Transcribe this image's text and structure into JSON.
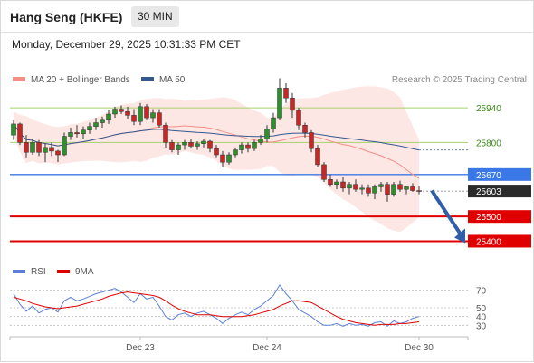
{
  "header": {
    "title": "Hang Seng (HKFE)",
    "interval": "30 MIN",
    "timestamp": "Monday, December 29, 2025 10:31:33 PM CET"
  },
  "legend": {
    "bollinger": {
      "label": "MA 20 + Bollinger Bands",
      "color": "#f28e86"
    },
    "ma50": {
      "label": "MA 50",
      "color": "#33588f"
    },
    "credit": "Research © 2025 Trading Central"
  },
  "rsi_legend": {
    "rsi": {
      "label": "RSI",
      "color": "#5b7fd6"
    },
    "ma9": {
      "label": "9MA",
      "color": "#e00000"
    }
  },
  "chart_data": {
    "type": "candlestick",
    "instrument": "Hang Seng (HKFE)",
    "timeframe": "30 MIN",
    "ylim": [
      25310,
      26080
    ],
    "x_labels": [
      "Dec 23",
      "Dec 24",
      "Dec 30"
    ],
    "x_label_index": [
      20,
      40,
      64
    ],
    "last_price": "25603",
    "levels": [
      {
        "label": "25940",
        "value": 25940,
        "style": "green-line",
        "color": "#a8d06b",
        "text_color": "#3a8a1a"
      },
      {
        "label": "25800",
        "value": 25800,
        "style": "green-line",
        "color": "#a8d06b",
        "text_color": "#3a8a1a"
      },
      {
        "label": "25670",
        "value": 25670,
        "style": "pivot",
        "color": "#3b78e7"
      },
      {
        "label": "25500",
        "value": 25500,
        "style": "support",
        "color": "#e00000"
      },
      {
        "label": "25400",
        "value": 25400,
        "style": "support",
        "color": "#e00000"
      }
    ],
    "projection_arrow": {
      "from_index": 66,
      "from_value": 25605,
      "to_index": 71,
      "to_value": 25400,
      "color": "#2f5fa8"
    },
    "candles": [
      [
        25830,
        25890,
        25810,
        25875
      ],
      [
        25875,
        25880,
        25790,
        25800
      ],
      [
        25800,
        25830,
        25740,
        25760
      ],
      [
        25760,
        25815,
        25750,
        25800
      ],
      [
        25800,
        25810,
        25745,
        25760
      ],
      [
        25760,
        25795,
        25720,
        25780
      ],
      [
        25780,
        25800,
        25745,
        25765
      ],
      [
        25765,
        25770,
        25720,
        25750
      ],
      [
        25750,
        25840,
        25745,
        25825
      ],
      [
        25825,
        25860,
        25810,
        25840
      ],
      [
        25840,
        25870,
        25820,
        25835
      ],
      [
        25835,
        25865,
        25815,
        25850
      ],
      [
        25850,
        25880,
        25835,
        25865
      ],
      [
        25865,
        25900,
        25850,
        25880
      ],
      [
        25880,
        25905,
        25860,
        25890
      ],
      [
        25890,
        25930,
        25875,
        25915
      ],
      [
        25915,
        25945,
        25900,
        25935
      ],
      [
        25935,
        25950,
        25915,
        25925
      ],
      [
        25925,
        25945,
        25895,
        25910
      ],
      [
        25910,
        25935,
        25870,
        25885
      ],
      [
        25885,
        25960,
        25870,
        25945
      ],
      [
        25945,
        25955,
        25890,
        25900
      ],
      [
        25900,
        25935,
        25880,
        25920
      ],
      [
        25920,
        25935,
        25860,
        25870
      ],
      [
        25870,
        25880,
        25780,
        25800
      ],
      [
        25800,
        25810,
        25760,
        25770
      ],
      [
        25770,
        25800,
        25750,
        25790
      ],
      [
        25790,
        25810,
        25770,
        25800
      ],
      [
        25800,
        25815,
        25775,
        25785
      ],
      [
        25785,
        25805,
        25770,
        25795
      ],
      [
        25795,
        25815,
        25780,
        25805
      ],
      [
        25805,
        25810,
        25760,
        25775
      ],
      [
        25775,
        25790,
        25740,
        25750
      ],
      [
        25750,
        25765,
        25700,
        25720
      ],
      [
        25720,
        25760,
        25710,
        25750
      ],
      [
        25750,
        25780,
        25740,
        25770
      ],
      [
        25770,
        25800,
        25755,
        25790
      ],
      [
        25790,
        25800,
        25760,
        25775
      ],
      [
        25775,
        25810,
        25765,
        25800
      ],
      [
        25800,
        25830,
        25790,
        25815
      ],
      [
        25815,
        25870,
        25800,
        25855
      ],
      [
        25855,
        25920,
        25840,
        25900
      ],
      [
        25900,
        26060,
        25890,
        26020
      ],
      [
        26020,
        26040,
        25960,
        25980
      ],
      [
        25980,
        26000,
        25900,
        25930
      ],
      [
        25930,
        25940,
        25850,
        25870
      ],
      [
        25870,
        25880,
        25820,
        25840
      ],
      [
        25840,
        25850,
        25760,
        25775
      ],
      [
        25775,
        25790,
        25700,
        25710
      ],
      [
        25710,
        25720,
        25640,
        25650
      ],
      [
        25650,
        25670,
        25620,
        25630
      ],
      [
        25630,
        25650,
        25610,
        25640
      ],
      [
        25640,
        25660,
        25600,
        25615
      ],
      [
        25615,
        25640,
        25590,
        25630
      ],
      [
        25630,
        25650,
        25600,
        25610
      ],
      [
        25610,
        25630,
        25590,
        25615
      ],
      [
        25615,
        25630,
        25580,
        25595
      ],
      [
        25595,
        25630,
        25570,
        25620
      ],
      [
        25620,
        25640,
        25600,
        25630
      ],
      [
        25630,
        25640,
        25560,
        25590
      ],
      [
        25590,
        25640,
        25580,
        25630
      ],
      [
        25630,
        25645,
        25600,
        25610
      ],
      [
        25610,
        25625,
        25590,
        25620
      ],
      [
        25620,
        25635,
        25600,
        25605
      ],
      [
        25605,
        25625,
        25590,
        25603
      ]
    ],
    "rsi": {
      "ylim": [
        20,
        80
      ],
      "ticks": [
        "70",
        "50",
        "40",
        "30"
      ],
      "tick_values": [
        70,
        50,
        40,
        30
      ],
      "rsi": [
        66,
        54,
        46,
        52,
        44,
        48,
        50,
        45,
        58,
        62,
        58,
        60,
        63,
        66,
        68,
        70,
        72,
        68,
        62,
        56,
        66,
        60,
        62,
        52,
        40,
        36,
        42,
        44,
        40,
        44,
        46,
        42,
        38,
        32,
        38,
        42,
        45,
        42,
        48,
        52,
        58,
        64,
        76,
        66,
        58,
        48,
        44,
        40,
        34,
        30,
        30,
        32,
        29,
        32,
        30,
        31,
        29,
        33,
        34,
        29,
        35,
        32,
        34,
        38,
        40
      ],
      "ma9": [
        62,
        60,
        58,
        55,
        53,
        51,
        50,
        49,
        50,
        51,
        52,
        54,
        56,
        58,
        60,
        63,
        65,
        67,
        68,
        67,
        66,
        65,
        64,
        62,
        58,
        53,
        49,
        46,
        44,
        42,
        42,
        42,
        41,
        40,
        40,
        40,
        40,
        41,
        42,
        44,
        46,
        48,
        52,
        55,
        58,
        58,
        57,
        56,
        52,
        48,
        44,
        40,
        37,
        35,
        33,
        32,
        31,
        30,
        31,
        31,
        31,
        32,
        32,
        33,
        34
      ]
    }
  }
}
